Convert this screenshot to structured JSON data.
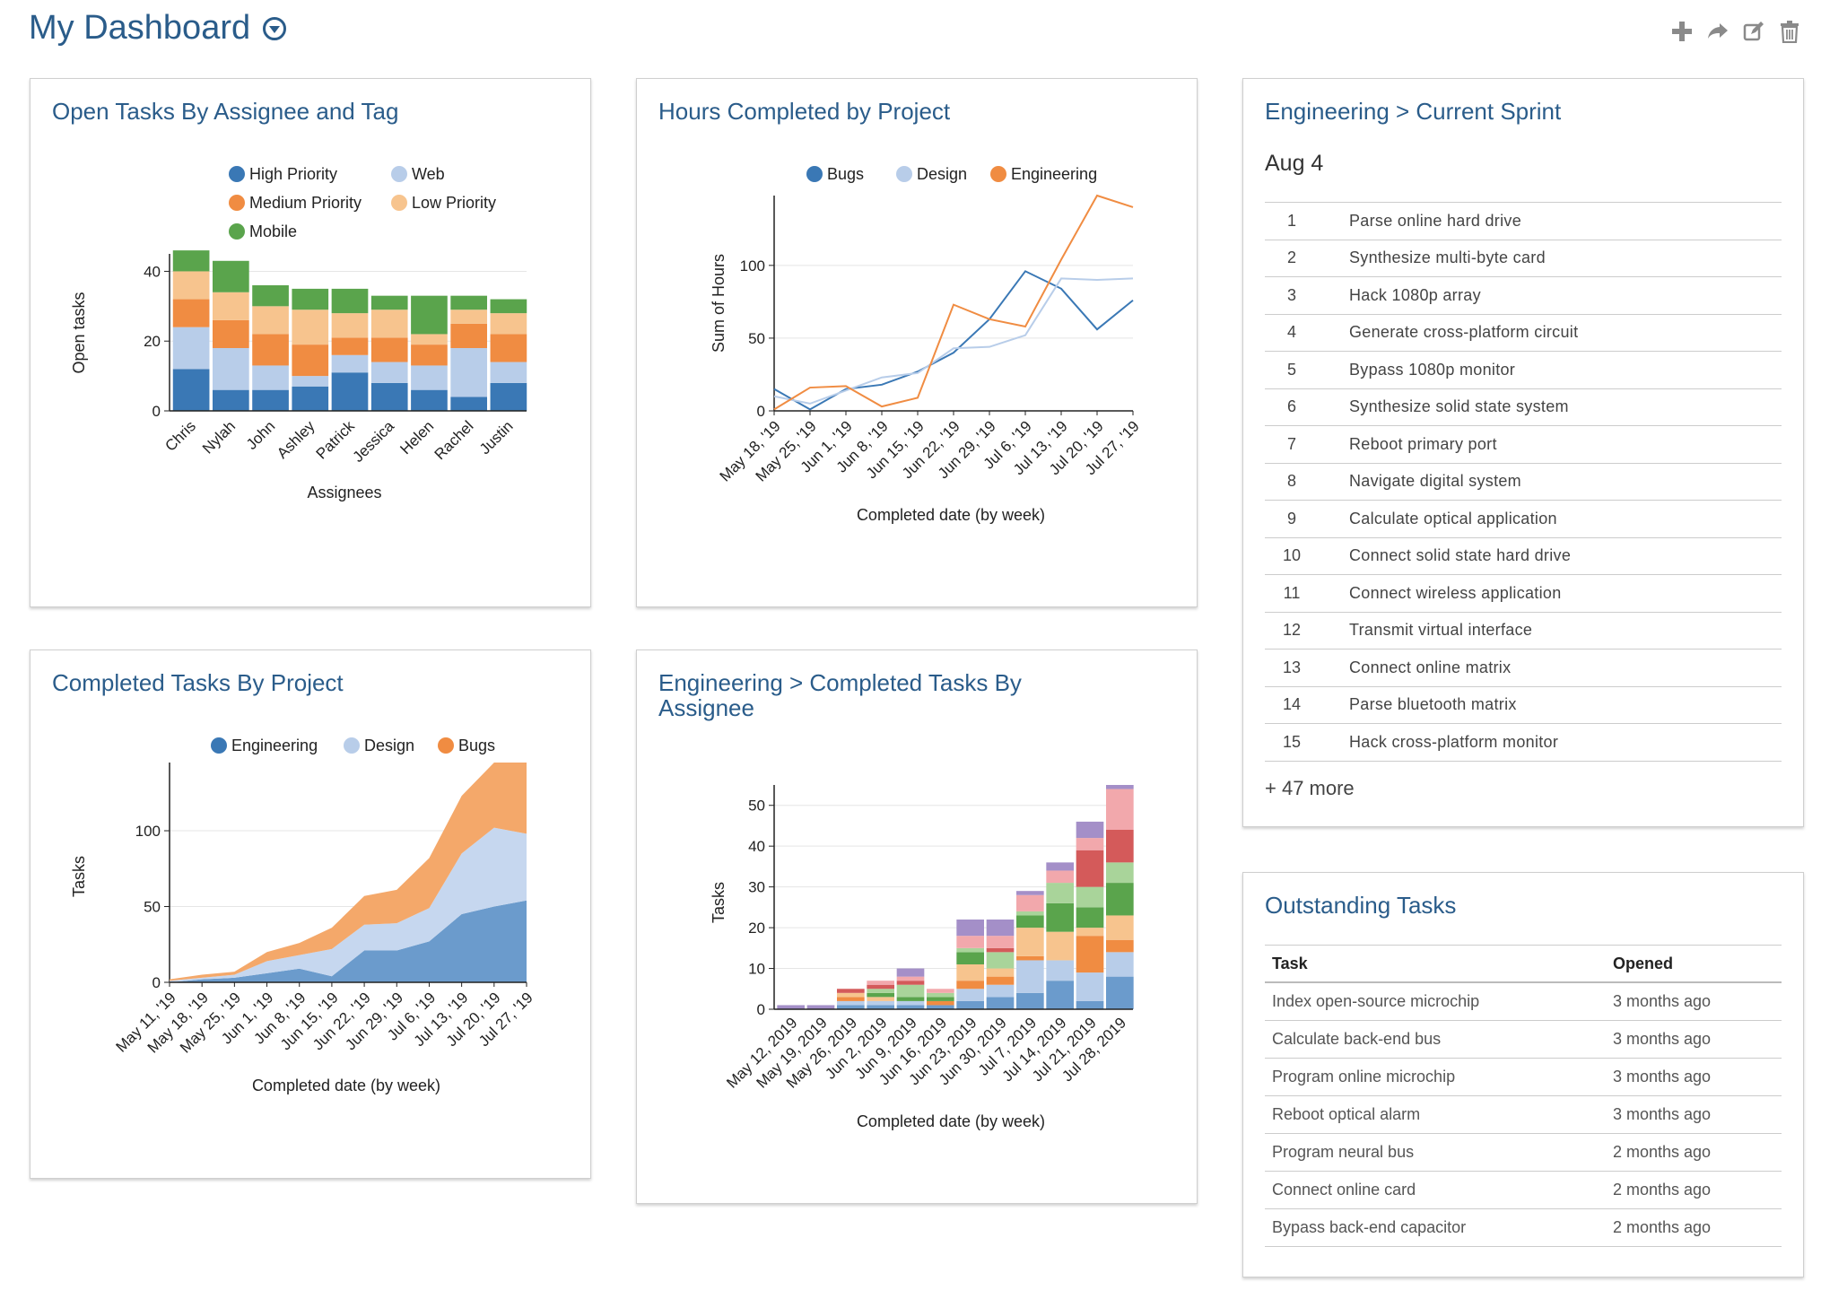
{
  "page": {
    "title": "My Dashboard"
  },
  "toolbar": {
    "icons": [
      "plus-icon",
      "share-arrow-icon",
      "edit-icon",
      "trash-icon"
    ]
  },
  "widgets": {
    "open_tasks": {
      "title": "Open Tasks By Assignee and Tag"
    },
    "hours_completed": {
      "title": "Hours Completed by Project"
    },
    "current_sprint": {
      "title": "Engineering > Current Sprint",
      "date": "Aug 4",
      "items": [
        {
          "num": "1",
          "task": "Parse online hard drive"
        },
        {
          "num": "2",
          "task": "Synthesize multi-byte card"
        },
        {
          "num": "3",
          "task": "Hack 1080p array"
        },
        {
          "num": "4",
          "task": "Generate cross-platform circuit"
        },
        {
          "num": "5",
          "task": "Bypass 1080p monitor"
        },
        {
          "num": "6",
          "task": "Synthesize solid state system"
        },
        {
          "num": "7",
          "task": "Reboot primary port"
        },
        {
          "num": "8",
          "task": "Navigate digital system"
        },
        {
          "num": "9",
          "task": "Calculate optical application"
        },
        {
          "num": "10",
          "task": "Connect solid state hard drive"
        },
        {
          "num": "11",
          "task": "Connect wireless application"
        },
        {
          "num": "12",
          "task": "Transmit virtual interface"
        },
        {
          "num": "13",
          "task": "Connect online matrix"
        },
        {
          "num": "14",
          "task": "Parse bluetooth matrix"
        },
        {
          "num": "15",
          "task": "Hack cross-platform monitor"
        }
      ],
      "more": "+ 47 more"
    },
    "completed_by_project": {
      "title": "Completed Tasks By Project"
    },
    "completed_by_assignee": {
      "title": "Engineering > Completed Tasks By Assignee"
    },
    "outstanding": {
      "title": "Outstanding Tasks",
      "columns": [
        "Task",
        "Opened"
      ],
      "rows": [
        {
          "task": "Index open-source microchip",
          "opened": "3 months ago"
        },
        {
          "task": "Calculate back-end bus",
          "opened": "3 months ago"
        },
        {
          "task": "Program online microchip",
          "opened": "3 months ago"
        },
        {
          "task": "Reboot optical alarm",
          "opened": "3 months ago"
        },
        {
          "task": "Program neural bus",
          "opened": "2 months ago"
        },
        {
          "task": "Connect online card",
          "opened": "2 months ago"
        },
        {
          "task": "Bypass back-end capacitor",
          "opened": "2 months ago"
        }
      ]
    }
  },
  "chart_data": [
    {
      "id": "open_tasks",
      "type": "bar",
      "stacked": true,
      "xlabel": "Assignees",
      "ylabel": "Open tasks",
      "ylim": [
        0,
        45
      ],
      "yticks": [
        0,
        20,
        40
      ],
      "categories": [
        "Chris",
        "Nylah",
        "John",
        "Ashley",
        "Patrick",
        "Jessica",
        "Helen",
        "Rachel",
        "Justin"
      ],
      "series": [
        {
          "name": "High Priority",
          "color": "#3a78b5",
          "values": [
            12,
            6,
            6,
            7,
            11,
            8,
            6,
            4,
            8
          ]
        },
        {
          "name": "Web",
          "color": "#b8cde9",
          "values": [
            12,
            12,
            7,
            3,
            5,
            6,
            7,
            14,
            6
          ]
        },
        {
          "name": "Medium Priority",
          "color": "#f08c42",
          "values": [
            8,
            8,
            9,
            9,
            5,
            7,
            6,
            7,
            8
          ]
        },
        {
          "name": "Low Priority",
          "color": "#f7c48e",
          "values": [
            8,
            8,
            8,
            10,
            7,
            8,
            3,
            4,
            6
          ]
        },
        {
          "name": "Mobile",
          "color": "#5aa44c",
          "values": [
            6,
            9,
            6,
            6,
            7,
            4,
            11,
            4,
            4
          ]
        }
      ],
      "legend": [
        {
          "name": "High Priority",
          "color": "#3a78b5"
        },
        {
          "name": "Web",
          "color": "#b8cde9"
        },
        {
          "name": "Medium Priority",
          "color": "#f08c42"
        },
        {
          "name": "Low Priority",
          "color": "#f7c48e"
        },
        {
          "name": "Mobile",
          "color": "#5aa44c"
        }
      ]
    },
    {
      "id": "hours_completed",
      "type": "line",
      "xlabel": "Completed date (by week)",
      "ylabel": "Sum of Hours",
      "ylim": [
        0,
        148
      ],
      "yticks": [
        0,
        50,
        100
      ],
      "categories": [
        "May 18, '19",
        "May 25, '19",
        "Jun 1, '19",
        "Jun 8, '19",
        "Jun 15, '19",
        "Jun 22, '19",
        "Jun 29, '19",
        "Jul 6, '19",
        "Jul 13, '19",
        "Jul 20, '19",
        "Jul 27, '19"
      ],
      "x_points": [
        "May 18, '19",
        "",
        "May 25, '19",
        "",
        "Jun 1, '19",
        "",
        "Jun 8, '19",
        "",
        "Jun 15, '19",
        "",
        "Jun 22, '19",
        "",
        "Jun 29, '19",
        "",
        "Jul 6, '19",
        "",
        "Jul 13, '19",
        "",
        "Jul 20, '19",
        "",
        "Jul 27, '19"
      ],
      "series": [
        {
          "name": "Bugs",
          "color": "#3a78b5",
          "values": [
            15,
            1,
            15,
            18,
            27,
            40,
            63,
            96,
            84,
            56,
            76
          ]
        },
        {
          "name": "Design",
          "color": "#b8cde9",
          "values": [
            10,
            5,
            14,
            23,
            26,
            43,
            44,
            52,
            91,
            90,
            91
          ]
        },
        {
          "name": "Engineering",
          "color": "#f08c42",
          "values": [
            1,
            16,
            17,
            3,
            9,
            73,
            63,
            58,
            104,
            148,
            140
          ]
        }
      ]
    },
    {
      "id": "completed_by_project",
      "type": "area",
      "stacked": true,
      "xlabel": "Completed date (by week)",
      "ylabel": "Tasks",
      "ylim": [
        0,
        145
      ],
      "yticks": [
        0,
        50,
        100
      ],
      "categories": [
        "May 11, '19",
        "May 18, '19",
        "May 25, '19",
        "Jun 1, '19",
        "Jun 8, '19",
        "Jun 15, '19",
        "Jun 22, '19",
        "Jun 29, '19",
        "Jul 6, '19",
        "Jul 13, '19",
        "Jul 20, '19",
        "Jul 27, '19"
      ],
      "series": [
        {
          "name": "Engineering",
          "color": "#3a78b5",
          "values": [
            0,
            2,
            3,
            6,
            9,
            4,
            21,
            21,
            27,
            45,
            50,
            54
          ]
        },
        {
          "name": "Design",
          "color": "#b8cde9",
          "values": [
            1,
            1,
            2,
            8,
            9,
            18,
            17,
            18,
            22,
            40,
            52,
            44
          ]
        },
        {
          "name": "Bugs",
          "color": "#f08c42",
          "values": [
            1,
            2,
            2,
            6,
            8,
            14,
            19,
            22,
            33,
            38,
            43,
            47
          ]
        }
      ]
    },
    {
      "id": "completed_by_assignee",
      "type": "bar",
      "stacked": true,
      "xlabel": "Completed date (by week)",
      "ylabel": "Tasks",
      "ylim": [
        0,
        55
      ],
      "yticks": [
        0,
        10,
        20,
        30,
        40,
        50
      ],
      "categories": [
        "May 12, 2019",
        "May 19, 2019",
        "May 26, 2019",
        "Jun 2, 2019",
        "Jun 9, 2019",
        "Jun 16, 2019",
        "Jun 23, 2019",
        "Jun 30, 2019",
        "Jul 7, 2019",
        "Jul 14, 2019",
        "Jul 21, 2019",
        "Jul 28, 2019"
      ],
      "series": [
        {
          "color": "#6b9bcc",
          "values": [
            0,
            0,
            1,
            1,
            1,
            1,
            2,
            3,
            4,
            7,
            2,
            8
          ]
        },
        {
          "color": "#b8cde9",
          "values": [
            0,
            0,
            1,
            1,
            1,
            0,
            3,
            3,
            8,
            5,
            7,
            6
          ]
        },
        {
          "color": "#f08c42",
          "values": [
            0,
            0,
            1,
            0,
            0,
            1,
            2,
            2,
            1,
            0,
            9,
            3
          ]
        },
        {
          "color": "#f7c48e",
          "values": [
            0,
            0,
            1,
            1,
            0,
            0,
            4,
            2,
            7,
            7,
            2,
            6
          ]
        },
        {
          "color": "#5aa44c",
          "values": [
            0,
            0,
            0,
            1,
            1,
            1,
            3,
            0,
            3,
            7,
            5,
            8
          ]
        },
        {
          "color": "#a9d49a",
          "values": [
            0,
            0,
            0,
            1,
            3,
            1,
            1,
            4,
            1,
            5,
            5,
            5
          ]
        },
        {
          "color": "#d45a5a",
          "values": [
            0,
            0,
            1,
            1,
            1,
            0,
            0,
            1,
            0,
            0,
            9,
            8
          ]
        },
        {
          "color": "#f2a8ac",
          "values": [
            0,
            0,
            0,
            1,
            1,
            1,
            3,
            3,
            4,
            3,
            3,
            10
          ]
        },
        {
          "color": "#a48fc8",
          "values": [
            1,
            1,
            0,
            0,
            2,
            0,
            4,
            4,
            1,
            2,
            4,
            1
          ]
        }
      ]
    }
  ]
}
